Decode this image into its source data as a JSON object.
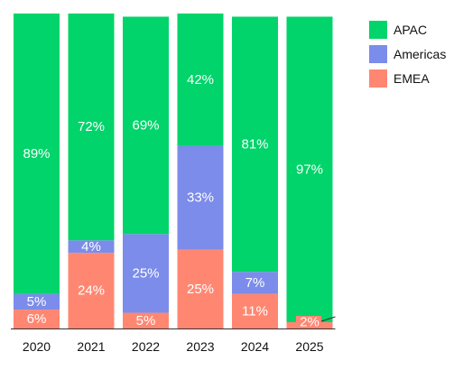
{
  "chart_data": {
    "type": "bar",
    "stacked": "percent",
    "categories": [
      "2020",
      "2021",
      "2022",
      "2023",
      "2024",
      "2025"
    ],
    "series": [
      {
        "name": "EMEA",
        "color": "#FF8772",
        "values": [
          6,
          24,
          5,
          25,
          11,
          2
        ],
        "labels": [
          "6%",
          "24%",
          "5%",
          "25%",
          "11%",
          "2%"
        ]
      },
      {
        "name": "Americas",
        "color": "#7B8CEA",
        "values": [
          5,
          4,
          25,
          33,
          7,
          0
        ],
        "labels": [
          "5%",
          "4%",
          "25%",
          "33%",
          "7%",
          ""
        ]
      },
      {
        "name": "APAC",
        "color": "#00D46A",
        "values": [
          89,
          72,
          69,
          42,
          81,
          97
        ],
        "labels": [
          "89%",
          "72%",
          "69%",
          "42%",
          "81%",
          "97%"
        ]
      }
    ],
    "ylim": [
      0,
      100
    ],
    "grid": false,
    "legend": {
      "position": "top-right",
      "order": [
        "APAC",
        "Americas",
        "EMEA"
      ]
    },
    "title": "",
    "xlabel": "",
    "ylabel": ""
  }
}
